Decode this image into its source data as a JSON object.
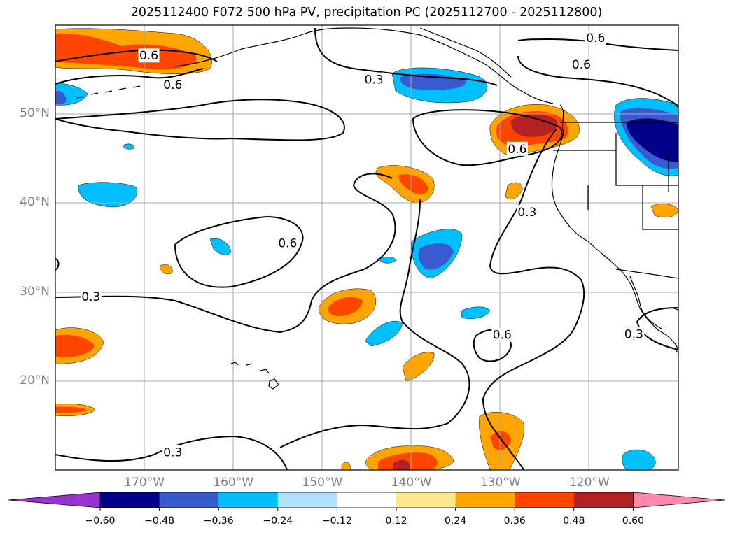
{
  "title": "2025112400 F072 500 hPa PV, precipitation PC (2025112700 - 2025112800)",
  "lat_labels": [
    {
      "text": "50°N",
      "lat": 50
    },
    {
      "text": "40°N",
      "lat": 40
    },
    {
      "text": "30°N",
      "lat": 30
    },
    {
      "text": "20°N",
      "lat": 20
    }
  ],
  "lon_labels": [
    {
      "text": "170°W",
      "lon": -170
    },
    {
      "text": "160°W",
      "lon": -160
    },
    {
      "text": "150°W",
      "lon": -150
    },
    {
      "text": "140°W",
      "lon": -140
    },
    {
      "text": "130°W",
      "lon": -130
    },
    {
      "text": "120°W",
      "lon": -120
    }
  ],
  "contour_labels": [
    {
      "text": "0.6",
      "lon": -169.5,
      "lat": 56.6
    },
    {
      "text": "0.6",
      "lon": -166.8,
      "lat": 53.3
    },
    {
      "text": "0.3",
      "lon": -144.2,
      "lat": 53.9
    },
    {
      "text": "0.6",
      "lon": -119.3,
      "lat": 58.6
    },
    {
      "text": "0.6",
      "lon": -120.9,
      "lat": 55.6
    },
    {
      "text": "0.6",
      "lon": -128.1,
      "lat": 46.1
    },
    {
      "text": "0.3",
      "lon": -127.0,
      "lat": 39.0
    },
    {
      "text": "0.6",
      "lon": -153.9,
      "lat": 35.5
    },
    {
      "text": "0.3",
      "lon": -176.0,
      "lat": 29.5
    },
    {
      "text": "0.6",
      "lon": -129.8,
      "lat": 25.2
    },
    {
      "text": "0.3",
      "lon": -115.0,
      "lat": 25.3
    },
    {
      "text": "0.3",
      "lon": -166.8,
      "lat": 12.0
    }
  ],
  "colorbar": {
    "ticks": [
      "−0.60",
      "−0.48",
      "−0.36",
      "−0.24",
      "−0.12",
      "0.12",
      "0.24",
      "0.36",
      "0.48",
      "0.60"
    ],
    "colors": [
      "#9a31d3",
      "#00008b",
      "#3a5bd0",
      "#00bfff",
      "#b0e2ff",
      "#ffffff",
      "#ffe88c",
      "#ffa500",
      "#ff4500",
      "#b22222",
      "#ff87a9"
    ]
  },
  "fill_colors": {
    "neg_036": "#3a5bd0",
    "neg_024": "#00bfff",
    "neg_048": "#00008b",
    "pos_024": "#ffa500",
    "pos_036": "#ff4500",
    "pos_048": "#b22222",
    "pos_060": "#ff87a9"
  },
  "map_extent": {
    "lon_min": -180,
    "lon_max": -110,
    "lat_min": 10,
    "lat_max": 60
  }
}
